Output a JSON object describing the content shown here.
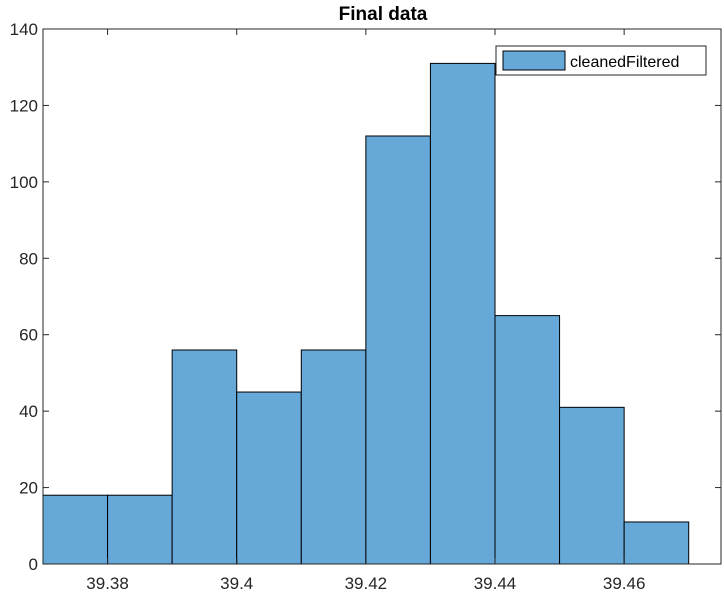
{
  "chart_data": {
    "type": "bar",
    "title": "Final data",
    "xlabel": "",
    "ylabel": "",
    "bin_edges": [
      39.37,
      39.38,
      39.39,
      39.4,
      39.41,
      39.42,
      39.43,
      39.44,
      39.45,
      39.46,
      39.47
    ],
    "series": [
      {
        "name": "cleanedFiltered",
        "values": [
          18,
          18,
          56,
          45,
          56,
          112,
          131,
          65,
          41,
          11
        ],
        "color": "#66a9d8",
        "edge_color": "#000000"
      }
    ],
    "xlim": [
      39.37,
      39.475
    ],
    "ylim": [
      0,
      140
    ],
    "xticks": [
      39.38,
      39.4,
      39.42,
      39.44,
      39.46
    ],
    "xtick_labels": [
      "39.38",
      "39.4",
      "39.42",
      "39.44",
      "39.46"
    ],
    "yticks": [
      0,
      20,
      40,
      60,
      80,
      100,
      120,
      140
    ],
    "ytick_labels": [
      "0",
      "20",
      "40",
      "60",
      "80",
      "100",
      "120",
      "140"
    ],
    "grid": false,
    "legend": "top-right"
  }
}
